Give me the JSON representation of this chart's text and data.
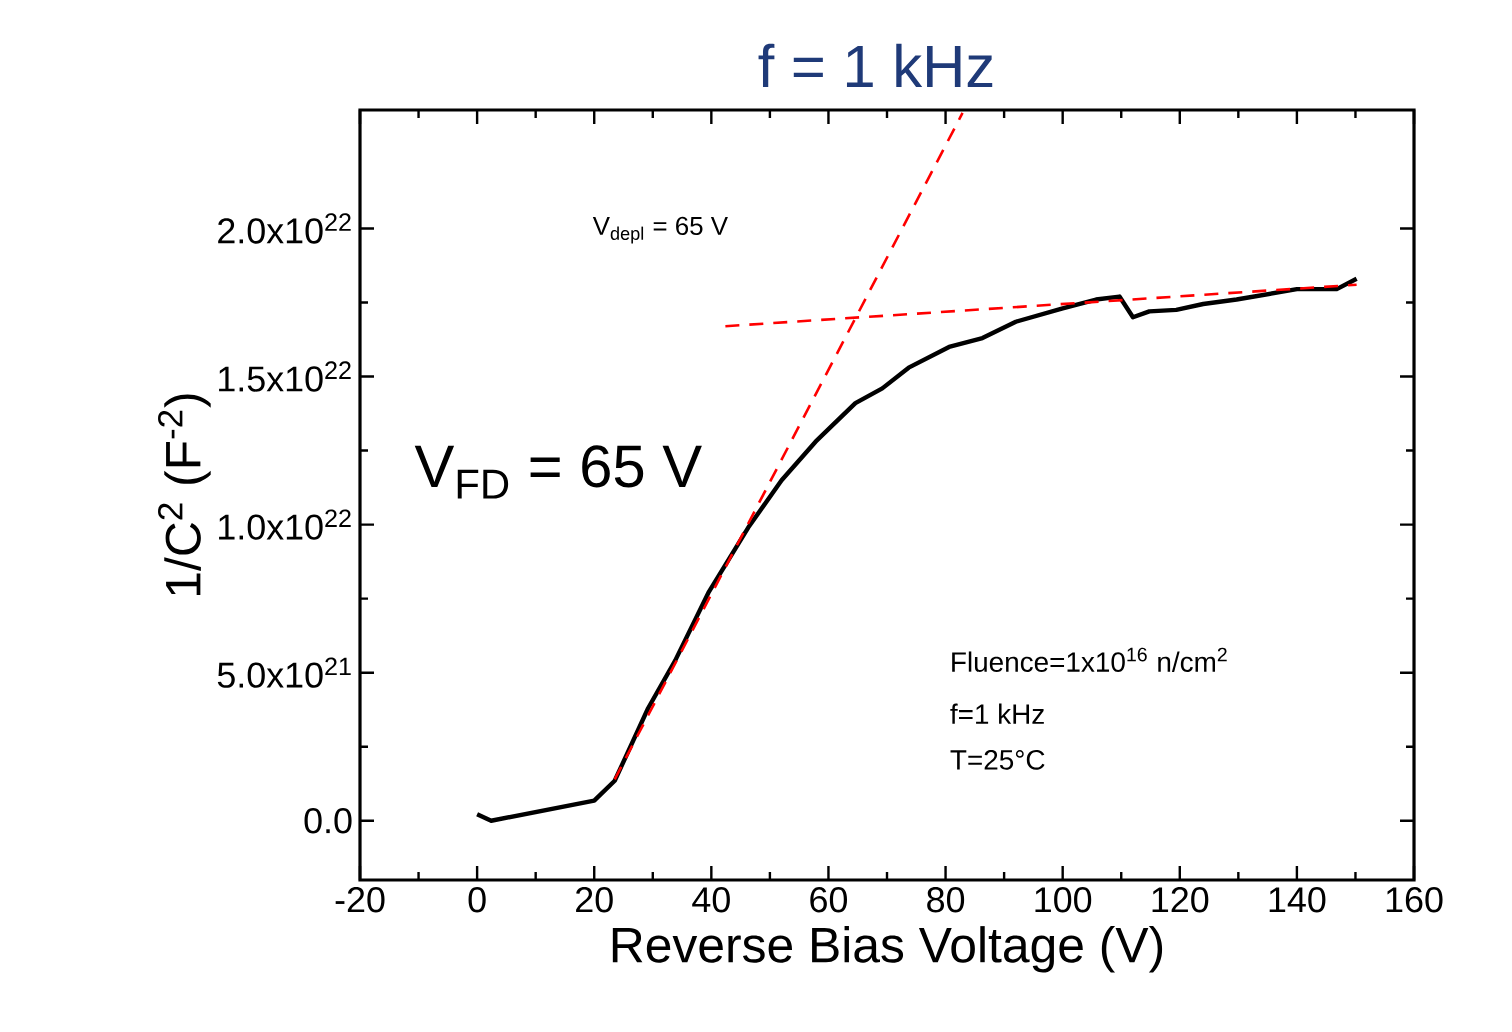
{
  "chart_data": {
    "type": "line",
    "title": "f = 1 kHz",
    "xlabel": "Reverse Bias Voltage (V)",
    "ylabel": "1/C$^{2}$ (F$^{-2}$)",
    "annotations": [
      "V$_{depl}$ = 65 V",
      "V$_{FD}$ = 65 V",
      "Fluence=1x10$^{16}$ n/cm$^{2}$",
      "f=1 kHz",
      "T=25°C"
    ],
    "xlim": [
      -20,
      160
    ],
    "xticks": [
      -20,
      0,
      20,
      40,
      60,
      80,
      100,
      120,
      140,
      160
    ],
    "ylim": [
      -2e+21,
      2.4e+22
    ],
    "yticks": [
      {
        "value": 0,
        "label": "0.0"
      },
      {
        "value": 5e+21,
        "label": "5.0x10$^{21}$"
      },
      {
        "value": 1e+22,
        "label": "1.0x10$^{22}$"
      },
      {
        "value": 1.5e+22,
        "label": "1.5x10$^{22}$"
      },
      {
        "value": 2e+22,
        "label": "2.0x10$^{22}$"
      }
    ],
    "grid": false,
    "marker": "none",
    "series": [
      {
        "color": "#000000",
        "line_style": "solid",
        "x": [
          0,
          2.4,
          20,
          23.5,
          29.2,
          33.8,
          39.5,
          46.3,
          52,
          57.8,
          64.6,
          69.2,
          73.7,
          80.6,
          86.3,
          92,
          100,
          105.7,
          109.7,
          112,
          114.8,
          119.4,
          124,
          129.7,
          140,
          146.8,
          150.2
        ],
        "values": [
          2.2e+20,
          0,
          6.8e+20,
          1.35e+21,
          3.8e+21,
          5.4e+21,
          7.7e+21,
          9.9e+21,
          1.15e+22,
          1.28e+22,
          1.41e+22,
          1.46e+22,
          1.53e+22,
          1.6e+22,
          1.63e+22,
          1.685e+22,
          1.73e+22,
          1.76e+22,
          1.77e+22,
          1.7e+22,
          1.72e+22,
          1.725e+22,
          1.745e+22,
          1.76e+22,
          1.795e+22,
          1.795e+22,
          1.83e+22
        ]
      },
      {
        "color": "#ff0000",
        "line_style": "dashed",
        "x": [
          23.5,
          82.9
        ],
        "values": [
          1.4e+21,
          2.39e+22
        ]
      },
      {
        "color": "#ff0000",
        "line_style": "dashed",
        "x": [
          42.4,
          150.2
        ],
        "values": [
          1.67e+22,
          1.81e+22
        ]
      }
    ]
  }
}
